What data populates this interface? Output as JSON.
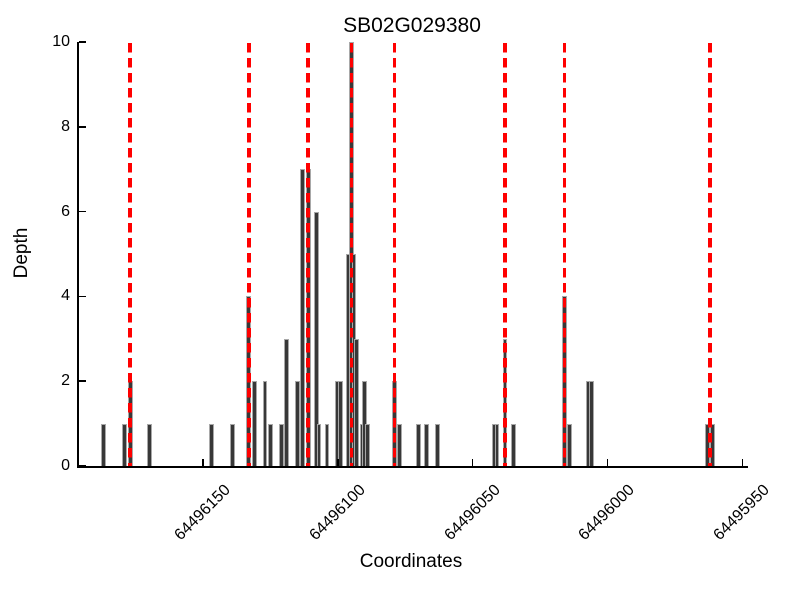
{
  "title": "SB02G029380",
  "axes": {
    "x_label": "Coordinates",
    "y_label": "Depth"
  },
  "colors": {
    "bar_fill": "#383838",
    "bar_edge": "#a8a8a8",
    "snp_line": "#ff0000",
    "axis": "#000000",
    "background": "#ffffff"
  },
  "chart_data": {
    "type": "bar",
    "title": "SB02G029380",
    "xlabel": "Coordinates",
    "ylabel": "Depth",
    "x_axis_reversed": true,
    "xlim": [
      64496196,
      64495949
    ],
    "ylim": [
      0,
      10
    ],
    "grid": false,
    "legend": "none",
    "xticks": [
      64496150,
      64496100,
      64496050,
      64496000,
      64495950
    ],
    "yticks": [
      0,
      2,
      4,
      6,
      8,
      10
    ],
    "snp_marker_lines": [
      64496177,
      64496133,
      64496111,
      64496095,
      64496079,
      64496038,
      64496016,
      64495962
    ],
    "snp_marker_style": "red dashed vertical",
    "bars": [
      {
        "coord": 64496187,
        "depth": 1
      },
      {
        "coord": 64496179,
        "depth": 1
      },
      {
        "coord": 64496177,
        "depth": 2
      },
      {
        "coord": 64496170,
        "depth": 1
      },
      {
        "coord": 64496147,
        "depth": 1
      },
      {
        "coord": 64496139,
        "depth": 1
      },
      {
        "coord": 64496133,
        "depth": 4
      },
      {
        "coord": 64496131,
        "depth": 2
      },
      {
        "coord": 64496127,
        "depth": 2
      },
      {
        "coord": 64496125,
        "depth": 1
      },
      {
        "coord": 64496121,
        "depth": 1
      },
      {
        "coord": 64496119,
        "depth": 3
      },
      {
        "coord": 64496115,
        "depth": 2
      },
      {
        "coord": 64496113,
        "depth": 7
      },
      {
        "coord": 64496111,
        "depth": 7
      },
      {
        "coord": 64496108,
        "depth": 6
      },
      {
        "coord": 64496107,
        "depth": 1
      },
      {
        "coord": 64496104,
        "depth": 1
      },
      {
        "coord": 64496100,
        "depth": 2
      },
      {
        "coord": 64496099,
        "depth": 2
      },
      {
        "coord": 64496096,
        "depth": 5
      },
      {
        "coord": 64496095,
        "depth": 10
      },
      {
        "coord": 64496094,
        "depth": 5
      },
      {
        "coord": 64496093,
        "depth": 3
      },
      {
        "coord": 64496091,
        "depth": 1
      },
      {
        "coord": 64496090,
        "depth": 2
      },
      {
        "coord": 64496089,
        "depth": 1
      },
      {
        "coord": 64496079,
        "depth": 2
      },
      {
        "coord": 64496077,
        "depth": 1
      },
      {
        "coord": 64496070,
        "depth": 1
      },
      {
        "coord": 64496067,
        "depth": 1
      },
      {
        "coord": 64496063,
        "depth": 1
      },
      {
        "coord": 64496042,
        "depth": 1
      },
      {
        "coord": 64496041,
        "depth": 1
      },
      {
        "coord": 64496038,
        "depth": 3
      },
      {
        "coord": 64496035,
        "depth": 1
      },
      {
        "coord": 64496016,
        "depth": 4
      },
      {
        "coord": 64496014,
        "depth": 1
      },
      {
        "coord": 64496007,
        "depth": 2
      },
      {
        "coord": 64496006,
        "depth": 2
      },
      {
        "coord": 64495963,
        "depth": 1
      },
      {
        "coord": 64495961,
        "depth": 1
      }
    ]
  }
}
